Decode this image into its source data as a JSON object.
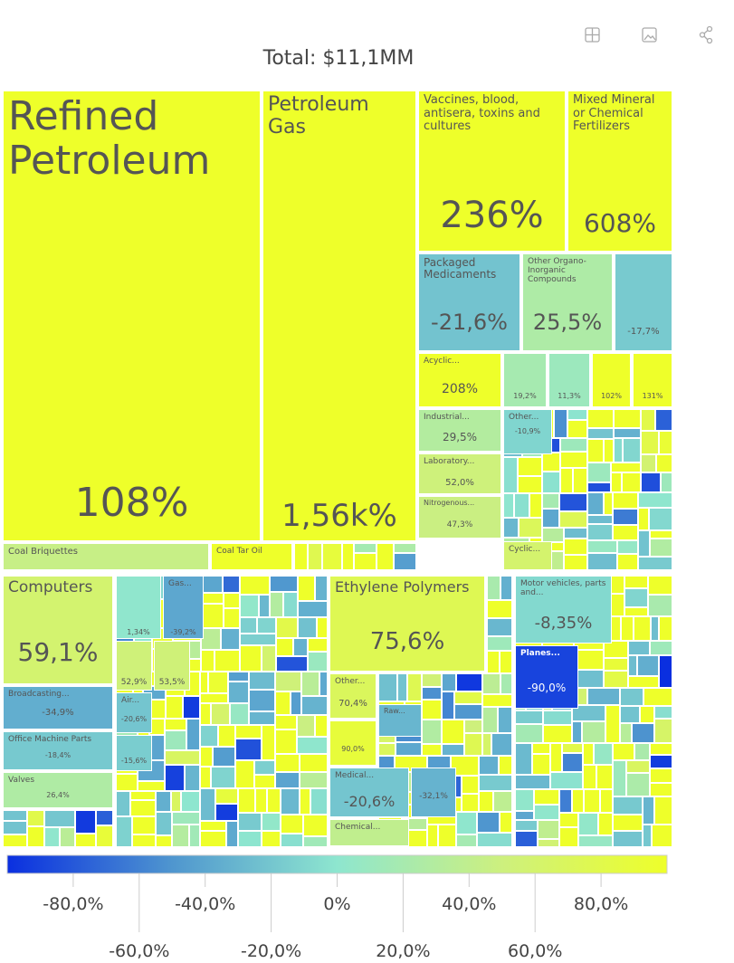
{
  "chart_data": {
    "type": "treemap",
    "title": "Total: $11,1MM",
    "labels": [
      "Refined Petroleum",
      "Petroleum Gas",
      "Coal Briquettes",
      "Coal Tar Oil",
      "Vaccines, blood, antisera, toxins and cultures",
      "Mixed Mineral or Chemical Fertilizers",
      "Packaged Medicaments",
      "Other Organo-Inorganic Compounds",
      null,
      "Acyclic...",
      null,
      null,
      null,
      null,
      "Industrial...",
      "Laboratory...",
      "Nitrogenous...",
      "Other...",
      "Cyclic...",
      "Computers",
      null,
      "Gas...",
      null,
      null,
      "Broadcasting...",
      "Office Machine Parts",
      "Valves",
      "Air...",
      null,
      "Ethylene Polymers",
      "Other...",
      "Raw...",
      null,
      "Medical...",
      null,
      "Chemical...",
      "Motor vehicles, parts and...",
      "Planes..."
    ],
    "values": [
      108,
      1560,
      45,
      110,
      236,
      608,
      -21.6,
      25.5,
      -17.7,
      208,
      19.2,
      11.3,
      102,
      131,
      29.5,
      52.0,
      47.3,
      -10.9,
      60,
      59.1,
      1.34,
      -39.2,
      52.9,
      53.5,
      -34.9,
      -18.4,
      26.4,
      -20.6,
      -15.6,
      75.6,
      70.4,
      -30,
      90.0,
      -20.6,
      -32.1,
      40,
      -8.35,
      -90.0
    ],
    "value_labels": [
      "108%",
      "1,56k%",
      null,
      null,
      "236%",
      "608%",
      "-21,6%",
      "25,5%",
      "-17,7%",
      "208%",
      "19,2%",
      "11,3%",
      "102%",
      "131%",
      "29,5%",
      "52,0%",
      "47,3%",
      "-10,9%",
      null,
      "59,1%",
      "1,34%",
      "-39,2%",
      "52,9%",
      "53,5%",
      "-34,9%",
      "-18,4%",
      "26,4%",
      "-20,6%",
      "-15,6%",
      "75,6%",
      "70,4%",
      null,
      "90,0%",
      "-20,6%",
      "-32,1%",
      null,
      "-8,35%",
      "-90,0%"
    ],
    "colorscale": [
      [
        -100,
        "#0a2fe0"
      ],
      [
        -50,
        "#4f96cf"
      ],
      [
        0,
        "#8ee6cf"
      ],
      [
        50,
        "#cdf07e"
      ],
      [
        100,
        "#eeff2a"
      ]
    ],
    "clim": [
      -100,
      100
    ],
    "cticks": [
      {
        "value": -80,
        "label": "-80,0%"
      },
      {
        "value": -60,
        "label": "-60,0%"
      },
      {
        "value": -40,
        "label": "-40,0%"
      },
      {
        "value": -20,
        "label": "-20,0%"
      },
      {
        "value": 0,
        "label": "0%"
      },
      {
        "value": 20,
        "label": "20,0%"
      },
      {
        "value": 40,
        "label": "40,0%"
      },
      {
        "value": 60,
        "label": "60,0%"
      },
      {
        "value": 80,
        "label": "80,0%"
      }
    ]
  }
}
